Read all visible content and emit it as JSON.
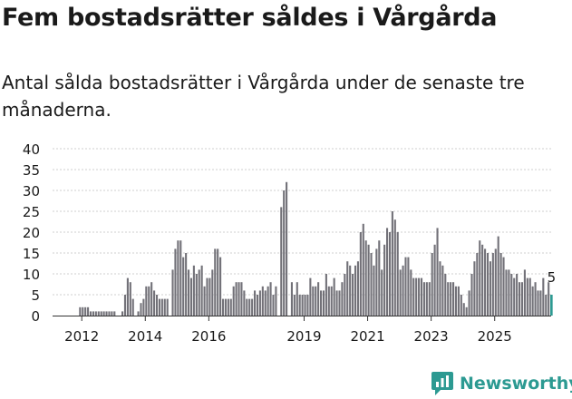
{
  "title": "Fem bostadsrätter såldes i Vårgårda",
  "subtitle": "Antal sålda bostadsrätter i Vårgårda under de senaste tre månaderna.",
  "brand": "Newsworthy",
  "colors": {
    "bar": "#727178",
    "highlight": "#2c9a92",
    "grid": "#cfcfcf",
    "text": "#1a1a1a"
  },
  "chart_data": {
    "type": "bar",
    "title": "Fem bostadsrätter såldes i Vårgårda",
    "xlabel": "",
    "ylabel": "",
    "ylim": [
      0,
      40
    ],
    "yticks": [
      "0",
      "5",
      "10",
      "15",
      "20",
      "25",
      "30",
      "35",
      "40"
    ],
    "x_start": "2011-08",
    "x_ticks": [
      {
        "label": "2012",
        "year": 2012
      },
      {
        "label": "2014",
        "year": 2014
      },
      {
        "label": "2016",
        "year": 2016
      },
      {
        "label": "2019",
        "year": 2019
      },
      {
        "label": "2021",
        "year": 2021
      },
      {
        "label": "2023",
        "year": 2023
      },
      {
        "label": "2025",
        "year": 2025
      }
    ],
    "values": [
      0,
      0,
      0,
      0,
      0,
      0,
      0,
      0,
      0,
      2,
      2,
      2,
      2,
      1,
      1,
      1,
      1,
      1,
      1,
      1,
      1,
      1,
      1,
      0,
      0,
      1,
      5,
      9,
      8,
      4,
      0,
      1,
      3,
      4,
      7,
      7,
      8,
      6,
      5,
      4,
      4,
      4,
      4,
      0,
      11,
      16,
      18,
      18,
      14,
      15,
      11,
      9,
      12,
      10,
      11,
      12,
      7,
      9,
      9,
      11,
      16,
      16,
      14,
      4,
      4,
      4,
      4,
      7,
      8,
      8,
      8,
      6,
      4,
      4,
      4,
      6,
      5,
      6,
      7,
      6,
      7,
      8,
      5,
      7,
      0,
      26,
      30,
      32,
      0,
      8,
      5,
      8,
      5,
      5,
      5,
      5,
      9,
      7,
      7,
      8,
      6,
      6,
      10,
      7,
      7,
      9,
      6,
      6,
      8,
      10,
      13,
      12,
      10,
      12,
      13,
      20,
      22,
      18,
      17,
      15,
      12,
      16,
      18,
      11,
      17,
      21,
      20,
      25,
      23,
      20,
      11,
      12,
      14,
      14,
      11,
      9,
      9,
      9,
      9,
      8,
      8,
      8,
      15,
      17,
      21,
      13,
      12,
      10,
      8,
      8,
      8,
      7,
      7,
      5,
      3,
      2,
      6,
      10,
      13,
      15,
      18,
      17,
      16,
      15,
      13,
      15,
      16,
      19,
      15,
      14,
      11,
      11,
      10,
      9,
      10,
      8,
      8,
      11,
      9,
      9,
      7,
      8,
      6,
      6,
      9,
      5,
      8,
      5
    ],
    "highlight_last": true,
    "last_value_label": "5"
  }
}
